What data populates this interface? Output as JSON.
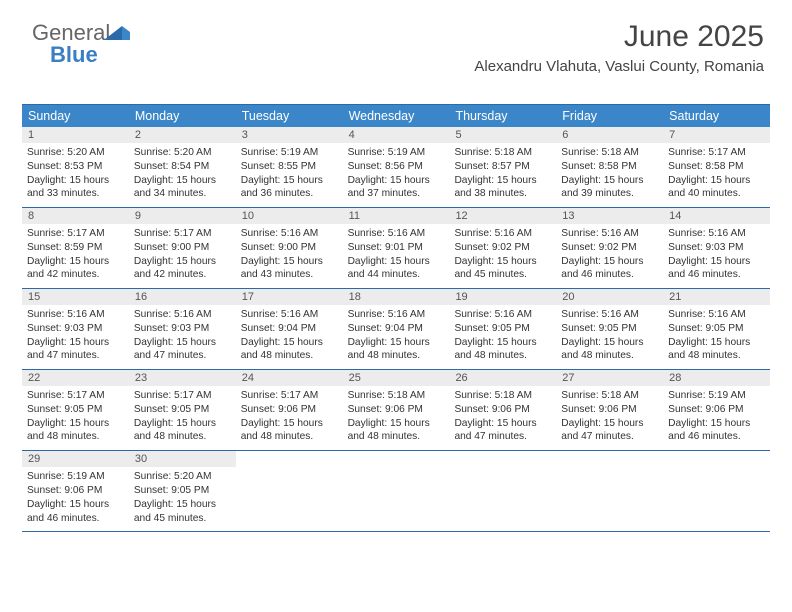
{
  "brand": {
    "line1": "General",
    "line2": "Blue"
  },
  "title": "June 2025",
  "location": "Alexandru Vlahuta, Vaslui County, Romania",
  "colors": {
    "header_bg": "#3a86c8",
    "header_border": "#2b6aa8",
    "daynum_bg": "#ececec",
    "text": "#333333"
  },
  "day_headers": [
    "Sunday",
    "Monday",
    "Tuesday",
    "Wednesday",
    "Thursday",
    "Friday",
    "Saturday"
  ],
  "weeks": [
    [
      {
        "n": "1",
        "sr": "5:20 AM",
        "ss": "8:53 PM",
        "dl": "15 hours and 33 minutes."
      },
      {
        "n": "2",
        "sr": "5:20 AM",
        "ss": "8:54 PM",
        "dl": "15 hours and 34 minutes."
      },
      {
        "n": "3",
        "sr": "5:19 AM",
        "ss": "8:55 PM",
        "dl": "15 hours and 36 minutes."
      },
      {
        "n": "4",
        "sr": "5:19 AM",
        "ss": "8:56 PM",
        "dl": "15 hours and 37 minutes."
      },
      {
        "n": "5",
        "sr": "5:18 AM",
        "ss": "8:57 PM",
        "dl": "15 hours and 38 minutes."
      },
      {
        "n": "6",
        "sr": "5:18 AM",
        "ss": "8:58 PM",
        "dl": "15 hours and 39 minutes."
      },
      {
        "n": "7",
        "sr": "5:17 AM",
        "ss": "8:58 PM",
        "dl": "15 hours and 40 minutes."
      }
    ],
    [
      {
        "n": "8",
        "sr": "5:17 AM",
        "ss": "8:59 PM",
        "dl": "15 hours and 42 minutes."
      },
      {
        "n": "9",
        "sr": "5:17 AM",
        "ss": "9:00 PM",
        "dl": "15 hours and 42 minutes."
      },
      {
        "n": "10",
        "sr": "5:16 AM",
        "ss": "9:00 PM",
        "dl": "15 hours and 43 minutes."
      },
      {
        "n": "11",
        "sr": "5:16 AM",
        "ss": "9:01 PM",
        "dl": "15 hours and 44 minutes."
      },
      {
        "n": "12",
        "sr": "5:16 AM",
        "ss": "9:02 PM",
        "dl": "15 hours and 45 minutes."
      },
      {
        "n": "13",
        "sr": "5:16 AM",
        "ss": "9:02 PM",
        "dl": "15 hours and 46 minutes."
      },
      {
        "n": "14",
        "sr": "5:16 AM",
        "ss": "9:03 PM",
        "dl": "15 hours and 46 minutes."
      }
    ],
    [
      {
        "n": "15",
        "sr": "5:16 AM",
        "ss": "9:03 PM",
        "dl": "15 hours and 47 minutes."
      },
      {
        "n": "16",
        "sr": "5:16 AM",
        "ss": "9:03 PM",
        "dl": "15 hours and 47 minutes."
      },
      {
        "n": "17",
        "sr": "5:16 AM",
        "ss": "9:04 PM",
        "dl": "15 hours and 48 minutes."
      },
      {
        "n": "18",
        "sr": "5:16 AM",
        "ss": "9:04 PM",
        "dl": "15 hours and 48 minutes."
      },
      {
        "n": "19",
        "sr": "5:16 AM",
        "ss": "9:05 PM",
        "dl": "15 hours and 48 minutes."
      },
      {
        "n": "20",
        "sr": "5:16 AM",
        "ss": "9:05 PM",
        "dl": "15 hours and 48 minutes."
      },
      {
        "n": "21",
        "sr": "5:16 AM",
        "ss": "9:05 PM",
        "dl": "15 hours and 48 minutes."
      }
    ],
    [
      {
        "n": "22",
        "sr": "5:17 AM",
        "ss": "9:05 PM",
        "dl": "15 hours and 48 minutes."
      },
      {
        "n": "23",
        "sr": "5:17 AM",
        "ss": "9:05 PM",
        "dl": "15 hours and 48 minutes."
      },
      {
        "n": "24",
        "sr": "5:17 AM",
        "ss": "9:06 PM",
        "dl": "15 hours and 48 minutes."
      },
      {
        "n": "25",
        "sr": "5:18 AM",
        "ss": "9:06 PM",
        "dl": "15 hours and 48 minutes."
      },
      {
        "n": "26",
        "sr": "5:18 AM",
        "ss": "9:06 PM",
        "dl": "15 hours and 47 minutes."
      },
      {
        "n": "27",
        "sr": "5:18 AM",
        "ss": "9:06 PM",
        "dl": "15 hours and 47 minutes."
      },
      {
        "n": "28",
        "sr": "5:19 AM",
        "ss": "9:06 PM",
        "dl": "15 hours and 46 minutes."
      }
    ],
    [
      {
        "n": "29",
        "sr": "5:19 AM",
        "ss": "9:06 PM",
        "dl": "15 hours and 46 minutes."
      },
      {
        "n": "30",
        "sr": "5:20 AM",
        "ss": "9:05 PM",
        "dl": "15 hours and 45 minutes."
      },
      null,
      null,
      null,
      null,
      null
    ]
  ],
  "labels": {
    "sunrise": "Sunrise:",
    "sunset": "Sunset:",
    "daylight": "Daylight:"
  }
}
